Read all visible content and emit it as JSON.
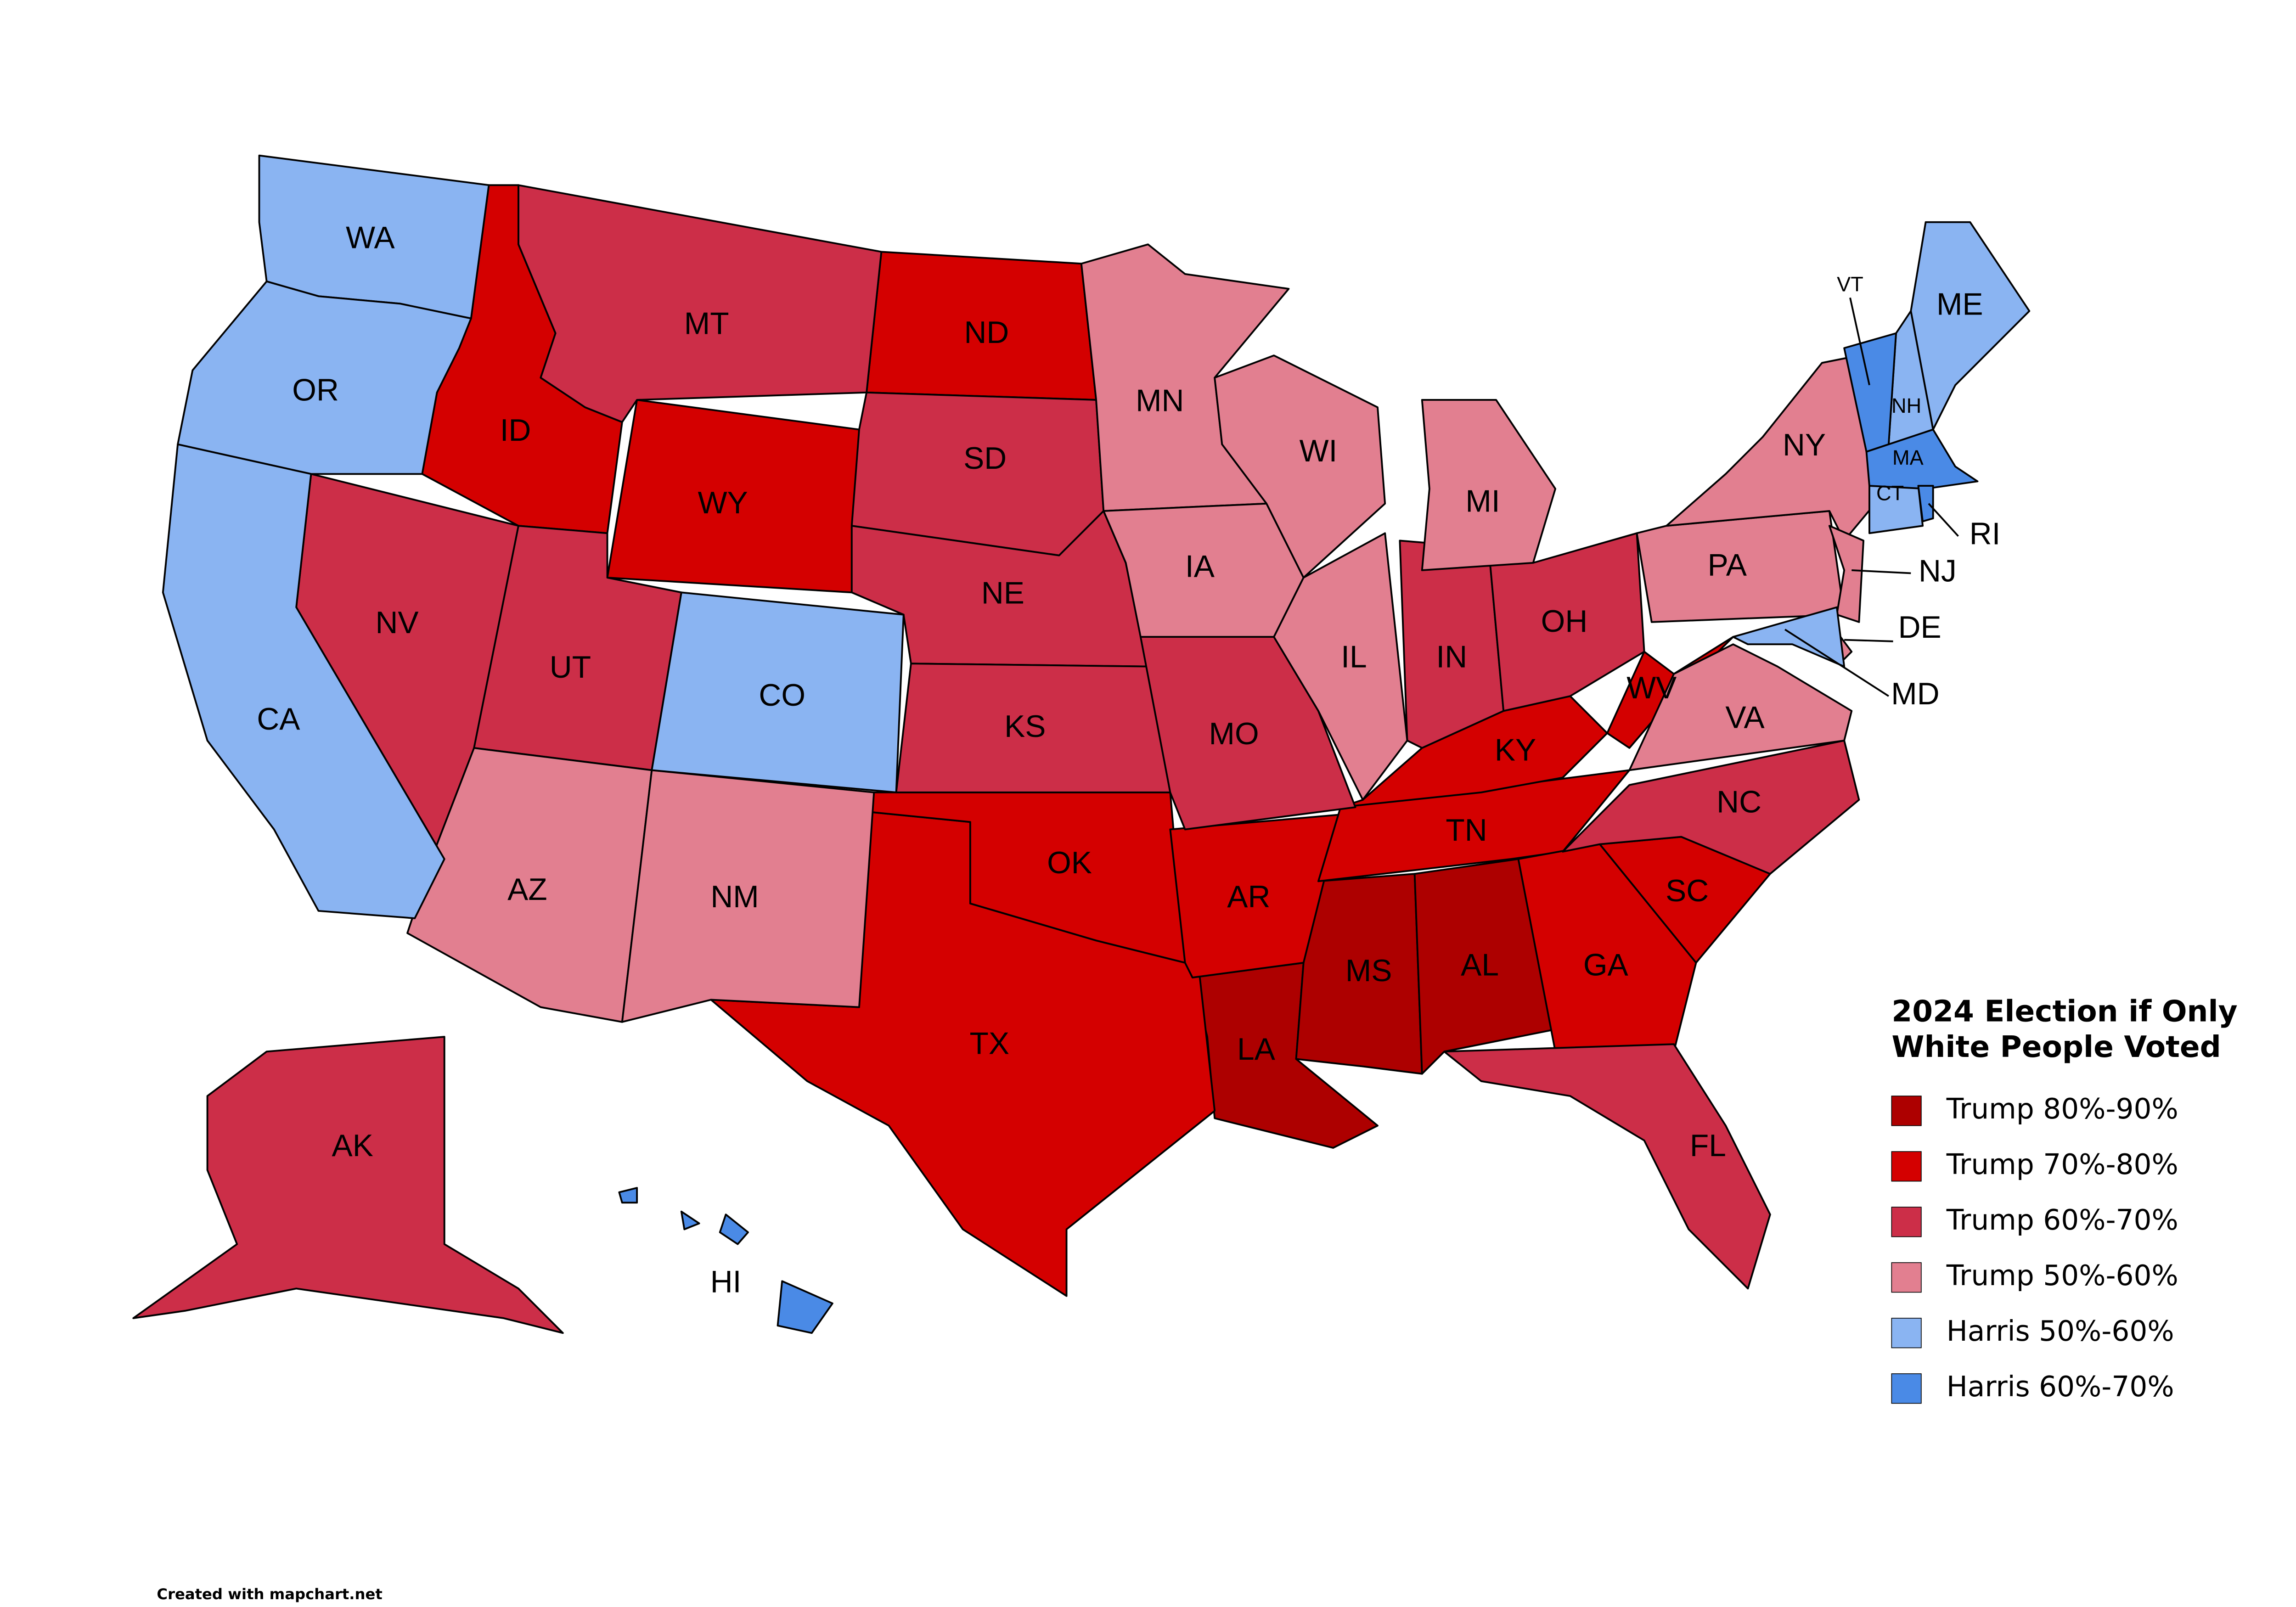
{
  "title": "2024 Election if Only White People Voted",
  "footer": "Created with mapchart.net",
  "legend": [
    {
      "label": "Trump 80%-90%",
      "color": "#ad0000",
      "states": [
        "LA",
        "MS",
        "AL"
      ]
    },
    {
      "label": "Trump 70%-80%",
      "color": "#d40000",
      "states": [
        "ID",
        "WY",
        "ND",
        "TX",
        "OK",
        "AR",
        "TN",
        "KY",
        "WV",
        "GA",
        "SC"
      ]
    },
    {
      "label": "Trump 60%-70%",
      "color": "#cc2e48",
      "states": [
        "MT",
        "NV",
        "UT",
        "SD",
        "NE",
        "KS",
        "MO",
        "IN",
        "OH",
        "NC",
        "FL",
        "AK"
      ]
    },
    {
      "label": "Trump 50%-60%",
      "color": "#e27f90",
      "states": [
        "AZ",
        "NM",
        "MN",
        "IA",
        "WI",
        "IL",
        "MI",
        "PA",
        "NY",
        "VA",
        "NJ",
        "DE"
      ]
    },
    {
      "label": "Harris 50%-60%",
      "color": "#8ab4f2",
      "states": [
        "WA",
        "OR",
        "CA",
        "CO",
        "ME",
        "NH",
        "CT",
        "MD"
      ]
    },
    {
      "label": "Harris 60%-70%",
      "color": "#4a8ae6",
      "states": [
        "VT",
        "MA",
        "RI",
        "HI"
      ]
    }
  ]
}
